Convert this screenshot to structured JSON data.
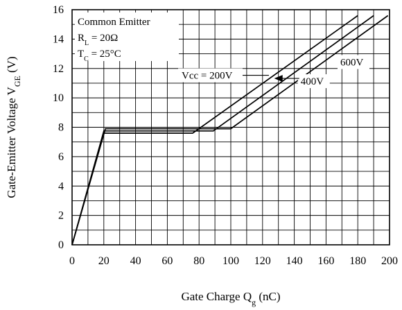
{
  "chart_data": {
    "type": "line",
    "xlabel": "Gate Charge  Q",
    "xlabel_sub": "g",
    "xlabel_tail": " (nC)",
    "ylabel": "Gate-Emitter Voltage  V",
    "ylabel_sub": "GE",
    "ylabel_tail": " (V)",
    "xlim": [
      0,
      200
    ],
    "ylim": [
      0,
      16
    ],
    "x_ticks": [
      0,
      20,
      40,
      60,
      80,
      100,
      120,
      140,
      160,
      180,
      200
    ],
    "y_ticks": [
      0,
      2,
      4,
      6,
      8,
      10,
      12,
      14,
      16
    ],
    "grid": true,
    "conditions": {
      "line1": "Common Emitter",
      "line2_main": "R",
      "line2_sub": "L",
      "line2_tail": " = 20Ω",
      "line3_main": "T",
      "line3_sub": "C",
      "line3_tail": " = 25°C"
    },
    "series": [
      {
        "name": "Vcc = 200V",
        "x": [
          0,
          20,
          76,
          180
        ],
        "y": [
          0,
          7.6,
          7.6,
          15.6
        ]
      },
      {
        "name": "400V",
        "x": [
          0,
          20,
          89,
          190
        ],
        "y": [
          0,
          7.75,
          7.75,
          15.6
        ]
      },
      {
        "name": "600V",
        "x": [
          0,
          21,
          100,
          199
        ],
        "y": [
          0,
          7.9,
          7.9,
          15.6
        ]
      }
    ],
    "annotations": [
      {
        "text": "Vcc = 200V",
        "series": 0
      },
      {
        "text": "400V",
        "series": 1
      },
      {
        "text": "600V",
        "series": 2
      }
    ]
  }
}
